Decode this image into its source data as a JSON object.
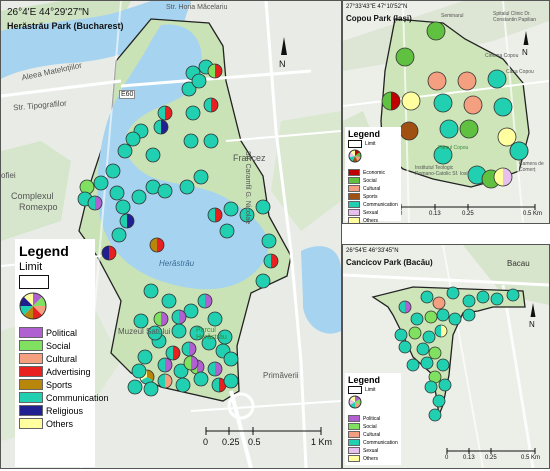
{
  "main": {
    "coords": "26°4'E 44°29'27\"N",
    "title": "Herăstrău Park (Bucharest)",
    "labels": {
      "street_horia": "Str. Horia Măcelariu",
      "aleea": "Aleea Mateloțiilor",
      "tipografilor": "Str. Tipografilor",
      "francez": "Francez",
      "caramfil": "Str. Caramfil G. Nicolae",
      "complexul": "Complexul",
      "romexpo": "Romexpo",
      "herastrau": "Herăstrău",
      "muzeul": "Muzeul Satului",
      "parcul": "Parcul Herăstrău",
      "primaverii": "Primăverii",
      "e60": "E60",
      "ofiei": "ofiei"
    },
    "legend": {
      "title": "Legend",
      "limit": "Limit",
      "items": [
        {
          "label": "Political",
          "color": "#b060d0"
        },
        {
          "label": "Social",
          "color": "#80e060"
        },
        {
          "label": "Cultural",
          "color": "#f4a080"
        },
        {
          "label": "Advertising",
          "color": "#e82020"
        },
        {
          "label": "Sports",
          "color": "#b8860b"
        },
        {
          "label": "Communication",
          "color": "#20d0b0"
        },
        {
          "label": "Religious",
          "color": "#202090"
        },
        {
          "label": "Others",
          "color": "#ffffa0"
        }
      ]
    },
    "scale": {
      "ticks": [
        "0",
        "0.25",
        "0.5",
        "1 Km"
      ]
    }
  },
  "copou": {
    "coords": "27°33'43\"E 47°10'52\"N",
    "title": "Copou Park (Iași)",
    "labels": {
      "parcul": "Parcul Copou",
      "sem": "Seminarul",
      "spital": "Spitalul Clinic Dr. Constantin Papilian",
      "cinema": "Cinema Copou",
      "casa": "Casa Copou",
      "camera": "Camera de Comerț",
      "inst": "Institutul Teologic Romano-Catolic Sf. Iosif"
    },
    "legend": {
      "title": "Legend",
      "limit": "Limit",
      "items": [
        {
          "label": "Economic",
          "color": "#c00000"
        },
        {
          "label": "Social",
          "color": "#60c040"
        },
        {
          "label": "Cultural",
          "color": "#f4a080"
        },
        {
          "label": "Sports",
          "color": "#a05010"
        },
        {
          "label": "Communication",
          "color": "#20d0b0"
        },
        {
          "label": "Sexual",
          "color": "#e8c0f0"
        },
        {
          "label": "Others",
          "color": "#ffffa0"
        }
      ]
    },
    "scale": {
      "ticks": [
        "0",
        "0.13",
        "0.25",
        "0.5 Km"
      ]
    }
  },
  "cancicov": {
    "coords": "26°54'E 46°33'45\"N",
    "title": "Cancicov Park (Bacău)",
    "labels": {
      "bacau": "Bacau"
    },
    "legend": {
      "title": "Legend",
      "limit": "Limit",
      "items": [
        {
          "label": "Political",
          "color": "#b060d0"
        },
        {
          "label": "Social",
          "color": "#80e060"
        },
        {
          "label": "Cultural",
          "color": "#f4a080"
        },
        {
          "label": "Communication",
          "color": "#20d0b0"
        },
        {
          "label": "Sexual",
          "color": "#e8c0f0"
        },
        {
          "label": "Others",
          "color": "#ffffa0"
        }
      ]
    },
    "scale": {
      "ticks": [
        "0",
        "0.13",
        "0.25",
        "0.5 Km"
      ]
    }
  }
}
